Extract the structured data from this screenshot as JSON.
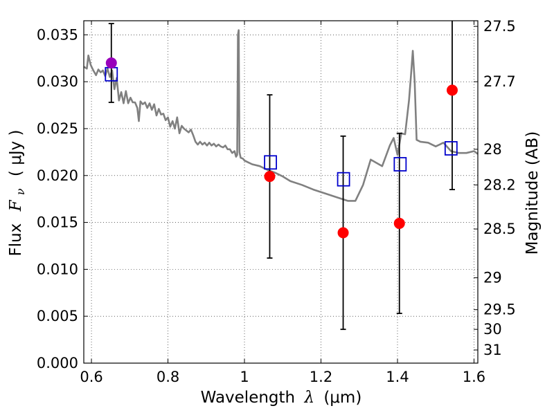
{
  "chart_data": {
    "type": "scatter",
    "xlabel_prefix": "Wavelength",
    "xlabel_symbol": "λ",
    "xlabel_unit": "(μm)",
    "ylabel_prefix": "Flux",
    "ylabel_symbol": "F",
    "ylabel_sub": "ν",
    "ylabel_unit": "( μJy )",
    "y2label": "Magnitude (AB)",
    "xlim": [
      0.58,
      1.61
    ],
    "ylim": [
      0.0,
      0.0365
    ],
    "grid": true,
    "grid_style": "dotted",
    "x_ticks": [
      0.6,
      0.8,
      1.0,
      1.2,
      1.4,
      1.6
    ],
    "x_tick_labels": [
      "0.6",
      "0.8",
      "1",
      "1.2",
      "1.4",
      "1.6"
    ],
    "y_ticks": [
      0.0,
      0.005,
      0.01,
      0.015,
      0.02,
      0.025,
      0.03,
      0.035
    ],
    "y_tick_labels": [
      "0.000",
      "0.005",
      "0.010",
      "0.015",
      "0.020",
      "0.025",
      "0.030",
      "0.035"
    ],
    "y2_ticks": [
      {
        "flux": 0.0359,
        "label": "27.5"
      },
      {
        "flux": 0.03,
        "label": "27.7"
      },
      {
        "flux": 0.0228,
        "label": "28"
      },
      {
        "flux": 0.019,
        "label": "28.2"
      },
      {
        "flux": 0.0143,
        "label": "28.5"
      },
      {
        "flux": 0.0091,
        "label": "29"
      },
      {
        "flux": 0.0057,
        "label": "29.5"
      },
      {
        "flux": 0.0036,
        "label": "30"
      },
      {
        "flux": 0.0014,
        "label": "31"
      }
    ],
    "colors": {
      "model": "#808080",
      "model_photometry": "#0000cc",
      "observed": "#ff0000",
      "reference": "#9900bb",
      "errorbar": "#000000"
    },
    "model_spectrum": {
      "x": [
        0.58,
        0.588,
        0.592,
        0.598,
        0.605,
        0.612,
        0.618,
        0.624,
        0.63,
        0.636,
        0.642,
        0.648,
        0.654,
        0.66,
        0.666,
        0.672,
        0.678,
        0.684,
        0.69,
        0.696,
        0.702,
        0.708,
        0.714,
        0.72,
        0.724,
        0.728,
        0.734,
        0.74,
        0.746,
        0.752,
        0.758,
        0.764,
        0.77,
        0.776,
        0.782,
        0.788,
        0.794,
        0.8,
        0.806,
        0.812,
        0.818,
        0.824,
        0.83,
        0.836,
        0.842,
        0.848,
        0.854,
        0.86,
        0.866,
        0.872,
        0.878,
        0.884,
        0.89,
        0.896,
        0.902,
        0.908,
        0.914,
        0.92,
        0.926,
        0.932,
        0.938,
        0.944,
        0.95,
        0.956,
        0.962,
        0.968,
        0.974,
        0.978,
        0.981,
        0.983,
        0.985,
        0.987,
        0.99,
        0.996,
        1.0,
        1.01,
        1.02,
        1.04,
        1.06,
        1.08,
        1.1,
        1.12,
        1.15,
        1.18,
        1.21,
        1.24,
        1.27,
        1.29,
        1.31,
        1.33,
        1.36,
        1.38,
        1.39,
        1.4,
        1.41,
        1.42,
        1.43,
        1.435,
        1.44,
        1.445,
        1.45,
        1.46,
        1.48,
        1.5,
        1.52,
        1.54,
        1.56,
        1.58,
        1.6,
        1.61
      ],
      "y": [
        0.0316,
        0.0314,
        0.0328,
        0.0318,
        0.0312,
        0.0307,
        0.0313,
        0.031,
        0.0312,
        0.0306,
        0.0314,
        0.0305,
        0.0312,
        0.0292,
        0.0304,
        0.028,
        0.0289,
        0.0277,
        0.029,
        0.0277,
        0.0283,
        0.0278,
        0.0278,
        0.0272,
        0.0258,
        0.0279,
        0.0276,
        0.0278,
        0.0272,
        0.0277,
        0.027,
        0.0276,
        0.0264,
        0.0271,
        0.0265,
        0.0266,
        0.0259,
        0.0262,
        0.0252,
        0.0258,
        0.025,
        0.0262,
        0.0245,
        0.0253,
        0.025,
        0.0248,
        0.0246,
        0.0249,
        0.0243,
        0.0236,
        0.0233,
        0.0236,
        0.0233,
        0.0235,
        0.0232,
        0.0235,
        0.0232,
        0.0234,
        0.0231,
        0.0233,
        0.0231,
        0.023,
        0.0232,
        0.0228,
        0.0228,
        0.0224,
        0.0226,
        0.022,
        0.0222,
        0.035,
        0.0355,
        0.0225,
        0.0219,
        0.0218,
        0.0216,
        0.0214,
        0.0212,
        0.021,
        0.0206,
        0.0203,
        0.0199,
        0.0194,
        0.019,
        0.0185,
        0.0181,
        0.0177,
        0.0173,
        0.0173,
        0.019,
        0.0217,
        0.021,
        0.0232,
        0.024,
        0.0222,
        0.0245,
        0.0244,
        0.028,
        0.0305,
        0.0333,
        0.03,
        0.0238,
        0.0236,
        0.0235,
        0.0231,
        0.0235,
        0.0226,
        0.0224,
        0.0224,
        0.0226,
        0.0223
      ]
    },
    "observed": [
      {
        "x": 1.066,
        "y": 0.0199,
        "err": 0.0087
      },
      {
        "x": 1.258,
        "y": 0.0139,
        "err": 0.0103
      },
      {
        "x": 1.405,
        "y": 0.0149,
        "err": 0.0096
      },
      {
        "x": 1.543,
        "y": 0.0291,
        "err": 0.0106
      }
    ],
    "reference": [
      {
        "x": 0.652,
        "y": 0.032,
        "err": 0.0042
      }
    ],
    "model_photometry": [
      {
        "x": 0.652,
        "y": 0.0308
      },
      {
        "x": 1.068,
        "y": 0.0214
      },
      {
        "x": 1.259,
        "y": 0.0196
      },
      {
        "x": 1.407,
        "y": 0.0212
      },
      {
        "x": 1.54,
        "y": 0.0229
      }
    ]
  }
}
